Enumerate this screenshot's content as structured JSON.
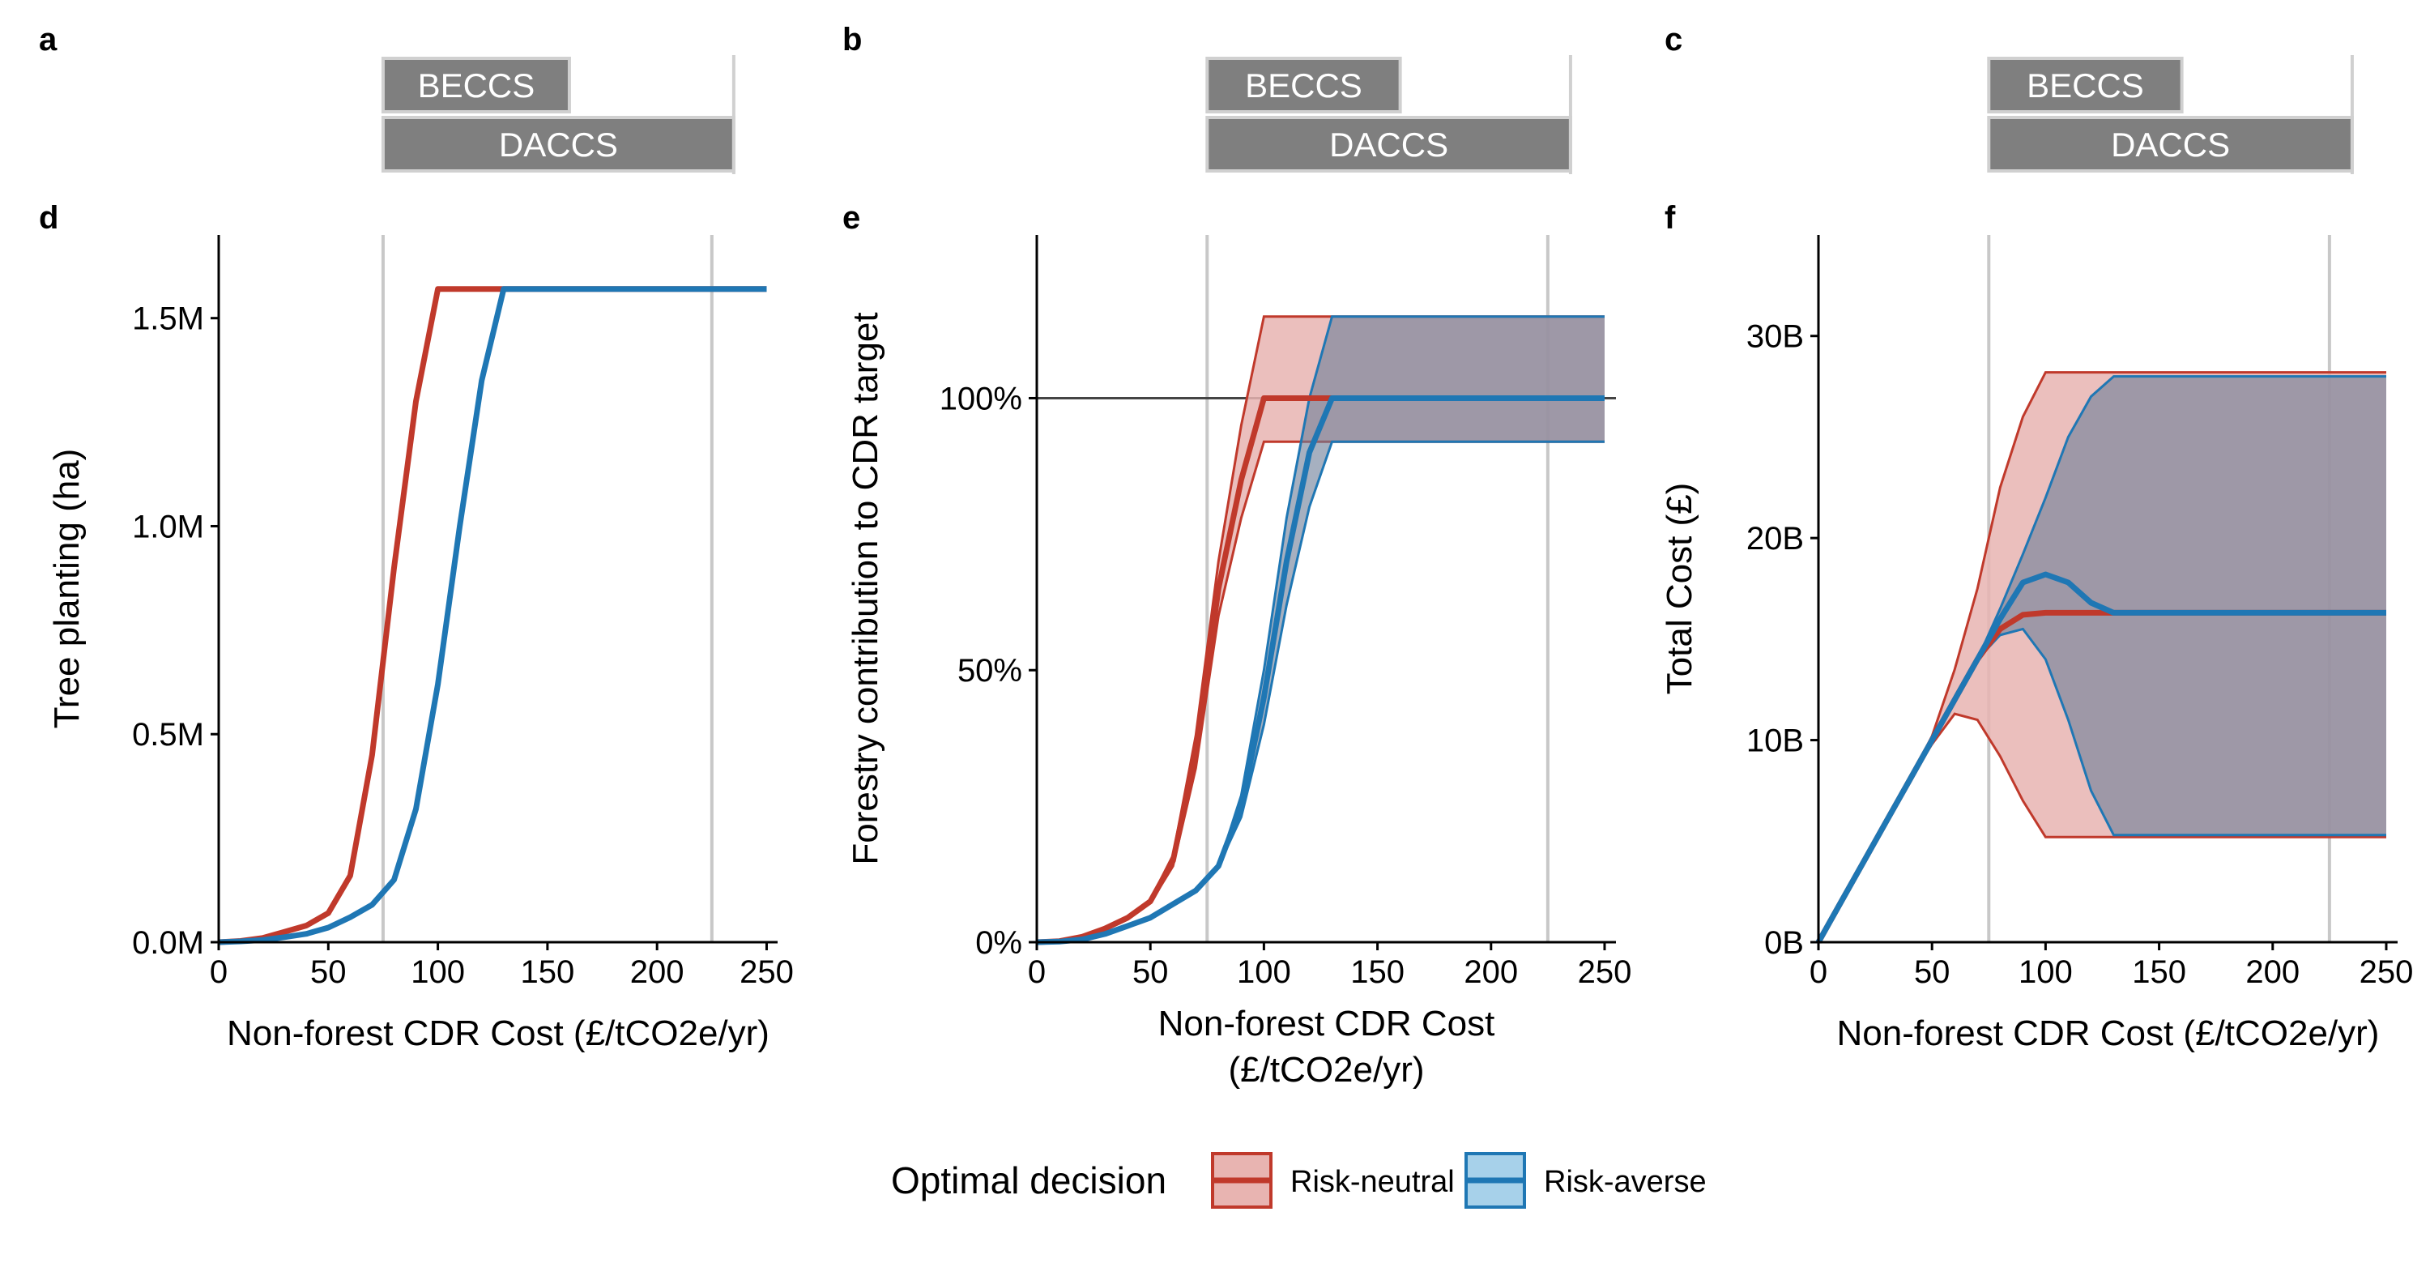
{
  "colors": {
    "risk_neutral": "#c0392b",
    "risk_neutral_fill": "#e8b4b1",
    "risk_averse": "#1f77b4",
    "risk_averse_fill": "#a7d1ea",
    "overlap_fill": "#a3a9b9",
    "tech_bar": "#7f7f7f",
    "ref_line": "#c8c8c8"
  },
  "tech_panels": [
    {
      "letter": "a",
      "bars": [
        {
          "label": "BECCS",
          "x_start": 75,
          "x_end": 160
        },
        {
          "label": "DACCS",
          "x_start": 75,
          "x_end": 235
        }
      ],
      "ref_line": 235
    },
    {
      "letter": "b",
      "bars": [
        {
          "label": "BECCS",
          "x_start": 75,
          "x_end": 160
        },
        {
          "label": "DACCS",
          "x_start": 75,
          "x_end": 235
        }
      ],
      "ref_line": 235
    },
    {
      "letter": "c",
      "bars": [
        {
          "label": "BECCS",
          "x_start": 75,
          "x_end": 160
        },
        {
          "label": "DACCS",
          "x_start": 75,
          "x_end": 235
        }
      ],
      "ref_line": 235
    }
  ],
  "legend": {
    "title": "Optimal decision",
    "items": [
      {
        "label": "Risk-neutral",
        "key": "risk_neutral"
      },
      {
        "label": "Risk-averse",
        "key": "risk_averse"
      }
    ]
  },
  "chart_data": [
    {
      "letter": "d",
      "type": "line",
      "xlabel": "Non-forest CDR Cost (£/tCO2e/yr)",
      "ylabel": "Tree planting (ha)",
      "xlim": [
        0,
        255
      ],
      "ylim": [
        0,
        1.7
      ],
      "xticks": [
        0,
        50,
        100,
        150,
        200,
        250
      ],
      "yticks": [
        0,
        0.5,
        1.0,
        1.5
      ],
      "yticklabels": [
        "0.0M",
        "0.5M",
        "1.0M",
        "1.5M"
      ],
      "vlines": [
        75,
        225
      ],
      "x": [
        0,
        10,
        20,
        30,
        40,
        50,
        60,
        70,
        80,
        90,
        100,
        110,
        120,
        130,
        140,
        150,
        160,
        170,
        180,
        190,
        200,
        210,
        220,
        230,
        240,
        250
      ],
      "series": [
        {
          "name": "Risk-neutral",
          "key": "risk_neutral",
          "values": [
            0,
            0.003,
            0.01,
            0.025,
            0.04,
            0.07,
            0.16,
            0.45,
            0.9,
            1.3,
            1.57,
            1.57,
            1.57,
            1.57,
            1.57,
            1.57,
            1.57,
            1.57,
            1.57,
            1.57,
            1.57,
            1.57,
            1.57,
            1.57,
            1.57,
            1.57
          ]
        },
        {
          "name": "Risk-averse",
          "key": "risk_averse",
          "values": [
            0,
            0.002,
            0.005,
            0.012,
            0.02,
            0.035,
            0.06,
            0.09,
            0.15,
            0.32,
            0.62,
            1.0,
            1.35,
            1.57,
            1.57,
            1.57,
            1.57,
            1.57,
            1.57,
            1.57,
            1.57,
            1.57,
            1.57,
            1.57,
            1.57,
            1.57
          ]
        }
      ]
    },
    {
      "letter": "e",
      "type": "area",
      "xlabel": "Non-forest CDR Cost",
      "xlabel2": "(£/tCO2e/yr)",
      "ylabel": "Forestry contribution to CDR target",
      "xlim": [
        0,
        255
      ],
      "ylim": [
        0,
        1.3
      ],
      "xticks": [
        0,
        50,
        100,
        150,
        200,
        250
      ],
      "yticks": [
        0,
        0.5,
        1.0
      ],
      "yticklabels": [
        "0%",
        "50%",
        "100%"
      ],
      "vlines": [
        75,
        225
      ],
      "hline": 1.0,
      "x": [
        0,
        10,
        20,
        30,
        40,
        50,
        60,
        70,
        80,
        90,
        100,
        110,
        120,
        130,
        140,
        150,
        160,
        170,
        180,
        190,
        200,
        210,
        220,
        230,
        240,
        250
      ],
      "series": [
        {
          "name": "Risk-neutral",
          "key": "risk_neutral",
          "values": [
            0,
            0.002,
            0.01,
            0.025,
            0.045,
            0.075,
            0.15,
            0.35,
            0.65,
            0.85,
            1.0,
            1.0,
            1.0,
            1.0,
            1.0,
            1.0,
            1.0,
            1.0,
            1.0,
            1.0,
            1.0,
            1.0,
            1.0,
            1.0,
            1.0,
            1.0
          ],
          "lower": [
            0,
            0.002,
            0.01,
            0.025,
            0.045,
            0.072,
            0.14,
            0.32,
            0.6,
            0.78,
            0.92,
            0.92,
            0.92,
            0.92,
            0.92,
            0.92,
            0.92,
            0.92,
            0.92,
            0.92,
            0.92,
            0.92,
            0.92,
            0.92,
            0.92,
            0.92
          ],
          "upper": [
            0,
            0.002,
            0.01,
            0.025,
            0.045,
            0.078,
            0.16,
            0.38,
            0.7,
            0.95,
            1.15,
            1.15,
            1.15,
            1.15,
            1.15,
            1.15,
            1.15,
            1.15,
            1.15,
            1.15,
            1.15,
            1.15,
            1.15,
            1.15,
            1.15,
            1.15
          ]
        },
        {
          "name": "Risk-averse",
          "key": "risk_averse",
          "values": [
            0,
            0.001,
            0.005,
            0.015,
            0.03,
            0.045,
            0.07,
            0.095,
            0.14,
            0.25,
            0.45,
            0.7,
            0.9,
            1.0,
            1.0,
            1.0,
            1.0,
            1.0,
            1.0,
            1.0,
            1.0,
            1.0,
            1.0,
            1.0,
            1.0,
            1.0
          ],
          "lower": [
            0,
            0.001,
            0.005,
            0.015,
            0.03,
            0.045,
            0.07,
            0.095,
            0.14,
            0.23,
            0.4,
            0.62,
            0.8,
            0.92,
            0.92,
            0.92,
            0.92,
            0.92,
            0.92,
            0.92,
            0.92,
            0.92,
            0.92,
            0.92,
            0.92,
            0.92
          ],
          "upper": [
            0,
            0.001,
            0.005,
            0.015,
            0.03,
            0.045,
            0.07,
            0.095,
            0.14,
            0.27,
            0.5,
            0.78,
            1.0,
            1.15,
            1.15,
            1.15,
            1.15,
            1.15,
            1.15,
            1.15,
            1.15,
            1.15,
            1.15,
            1.15,
            1.15,
            1.15
          ]
        }
      ]
    },
    {
      "letter": "f",
      "type": "area",
      "xlabel": "Non-forest CDR Cost (£/tCO2e/yr)",
      "ylabel": "Total Cost (£)",
      "xlim": [
        0,
        255
      ],
      "ylim": [
        0,
        35
      ],
      "xticks": [
        0,
        50,
        100,
        150,
        200,
        250
      ],
      "yticks": [
        0,
        10,
        20,
        30
      ],
      "yticklabels": [
        "0B",
        "10B",
        "20B",
        "30B"
      ],
      "vlines": [
        75,
        225
      ],
      "x": [
        0,
        10,
        20,
        30,
        40,
        50,
        60,
        70,
        80,
        90,
        100,
        110,
        120,
        130,
        140,
        150,
        160,
        170,
        180,
        190,
        200,
        210,
        220,
        230,
        240,
        250
      ],
      "series": [
        {
          "name": "Risk-neutral",
          "key": "risk_neutral",
          "values": [
            0,
            2,
            4,
            6,
            8,
            10,
            12,
            14,
            15.5,
            16.2,
            16.3,
            16.3,
            16.3,
            16.3,
            16.3,
            16.3,
            16.3,
            16.3,
            16.3,
            16.3,
            16.3,
            16.3,
            16.3,
            16.3,
            16.3,
            16.3
          ],
          "lower": [
            0,
            2,
            4,
            6,
            8,
            9.8,
            11.3,
            11,
            9.2,
            7,
            5.2,
            5.2,
            5.2,
            5.2,
            5.2,
            5.2,
            5.2,
            5.2,
            5.2,
            5.2,
            5.2,
            5.2,
            5.2,
            5.2,
            5.2,
            5.2
          ],
          "upper": [
            0,
            2,
            4,
            6,
            8,
            10.2,
            13.5,
            17.5,
            22.5,
            26,
            28.2,
            28.2,
            28.2,
            28.2,
            28.2,
            28.2,
            28.2,
            28.2,
            28.2,
            28.2,
            28.2,
            28.2,
            28.2,
            28.2,
            28.2,
            28.2
          ]
        },
        {
          "name": "Risk-averse",
          "key": "risk_averse",
          "values": [
            0,
            2,
            4,
            6,
            8,
            10,
            12,
            14,
            16,
            17.8,
            18.2,
            17.8,
            16.8,
            16.3,
            16.3,
            16.3,
            16.3,
            16.3,
            16.3,
            16.3,
            16.3,
            16.3,
            16.3,
            16.3,
            16.3,
            16.3
          ],
          "lower": [
            0,
            2,
            4,
            6,
            8,
            10,
            12,
            14,
            15.2,
            15.5,
            14,
            11,
            7.5,
            5.3,
            5.3,
            5.3,
            5.3,
            5.3,
            5.3,
            5.3,
            5.3,
            5.3,
            5.3,
            5.3,
            5.3,
            5.3
          ],
          "upper": [
            0,
            2,
            4,
            6,
            8,
            10,
            12,
            14,
            16.5,
            19.2,
            22,
            25,
            27,
            28,
            28,
            28,
            28,
            28,
            28,
            28,
            28,
            28,
            28,
            28,
            28,
            28
          ]
        }
      ]
    }
  ]
}
